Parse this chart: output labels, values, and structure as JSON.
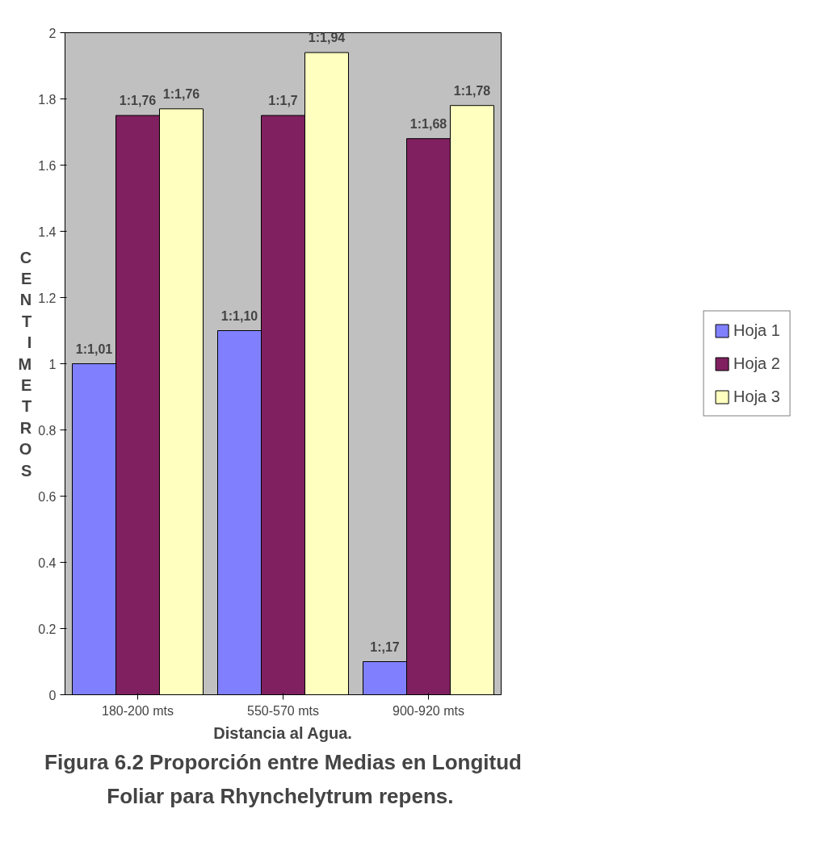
{
  "chart_data": {
    "type": "bar",
    "xlabel": "Distancia al Agua.",
    "ylabel": "CENTIMETROS",
    "title": "Figura 6.2 Proporción entre Medias en Longitud\nFoliar para Rhynchelytrum  repens.",
    "categories": [
      "180-200 mts",
      "550-570 mts",
      "900-920 mts"
    ],
    "series": [
      {
        "name": "Hoja 1",
        "color": "#8080ff",
        "values": [
          1.0,
          1.1,
          0.1
        ],
        "value_labels": [
          "1:1,01",
          "1:1,10",
          "1:,17"
        ]
      },
      {
        "name": "Hoja 2",
        "color": "#802060",
        "values": [
          1.75,
          1.75,
          1.68
        ],
        "value_labels": [
          "1:1,76",
          "1:1,7",
          "1:1,68"
        ]
      },
      {
        "name": "Hoja 3",
        "color": "#ffffc0",
        "values": [
          1.77,
          1.94,
          1.78
        ],
        "value_labels": [
          "1:1,76",
          "1:1,94",
          "1:1,78"
        ]
      }
    ],
    "ylim": [
      0,
      2
    ],
    "yticks": [
      0,
      0.2,
      0.4,
      0.6,
      0.8,
      1,
      1.2,
      1.4,
      1.6,
      1.8,
      2
    ],
    "grid": false,
    "legend": "right"
  }
}
